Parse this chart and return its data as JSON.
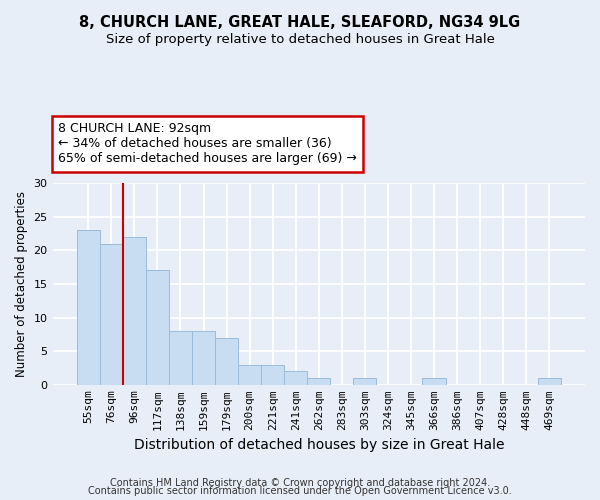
{
  "title": "8, CHURCH LANE, GREAT HALE, SLEAFORD, NG34 9LG",
  "subtitle": "Size of property relative to detached houses in Great Hale",
  "xlabel": "Distribution of detached houses by size in Great Hale",
  "ylabel": "Number of detached properties",
  "categories": [
    "55sqm",
    "76sqm",
    "96sqm",
    "117sqm",
    "138sqm",
    "159sqm",
    "179sqm",
    "200sqm",
    "221sqm",
    "241sqm",
    "262sqm",
    "283sqm",
    "303sqm",
    "324sqm",
    "345sqm",
    "366sqm",
    "386sqm",
    "407sqm",
    "428sqm",
    "448sqm",
    "469sqm"
  ],
  "values": [
    23,
    21,
    22,
    17,
    8,
    8,
    7,
    3,
    3,
    2,
    1,
    0,
    1,
    0,
    0,
    1,
    0,
    0,
    0,
    0,
    1
  ],
  "bar_color": "#c9ddf2",
  "bar_edge_color": "#9bbbd8",
  "vline_index": 1.5,
  "vline_color": "#cc0000",
  "annotation_text": "8 CHURCH LANE: 92sqm\n← 34% of detached houses are smaller (36)\n65% of semi-detached houses are larger (69) →",
  "annotation_box_facecolor": "#ffffff",
  "annotation_box_edgecolor": "#cc0000",
  "ylim": [
    0,
    30
  ],
  "yticks": [
    0,
    5,
    10,
    15,
    20,
    25,
    30
  ],
  "footer1": "Contains HM Land Registry data © Crown copyright and database right 2024.",
  "footer2": "Contains public sector information licensed under the Open Government Licence v3.0.",
  "bg_color": "#e8eef8",
  "grid_color": "#ffffff",
  "title_fontsize": 10.5,
  "subtitle_fontsize": 9.5,
  "ylabel_fontsize": 8.5,
  "xlabel_fontsize": 10,
  "tick_fontsize": 8,
  "annotation_fontsize": 9,
  "footer_fontsize": 7
}
